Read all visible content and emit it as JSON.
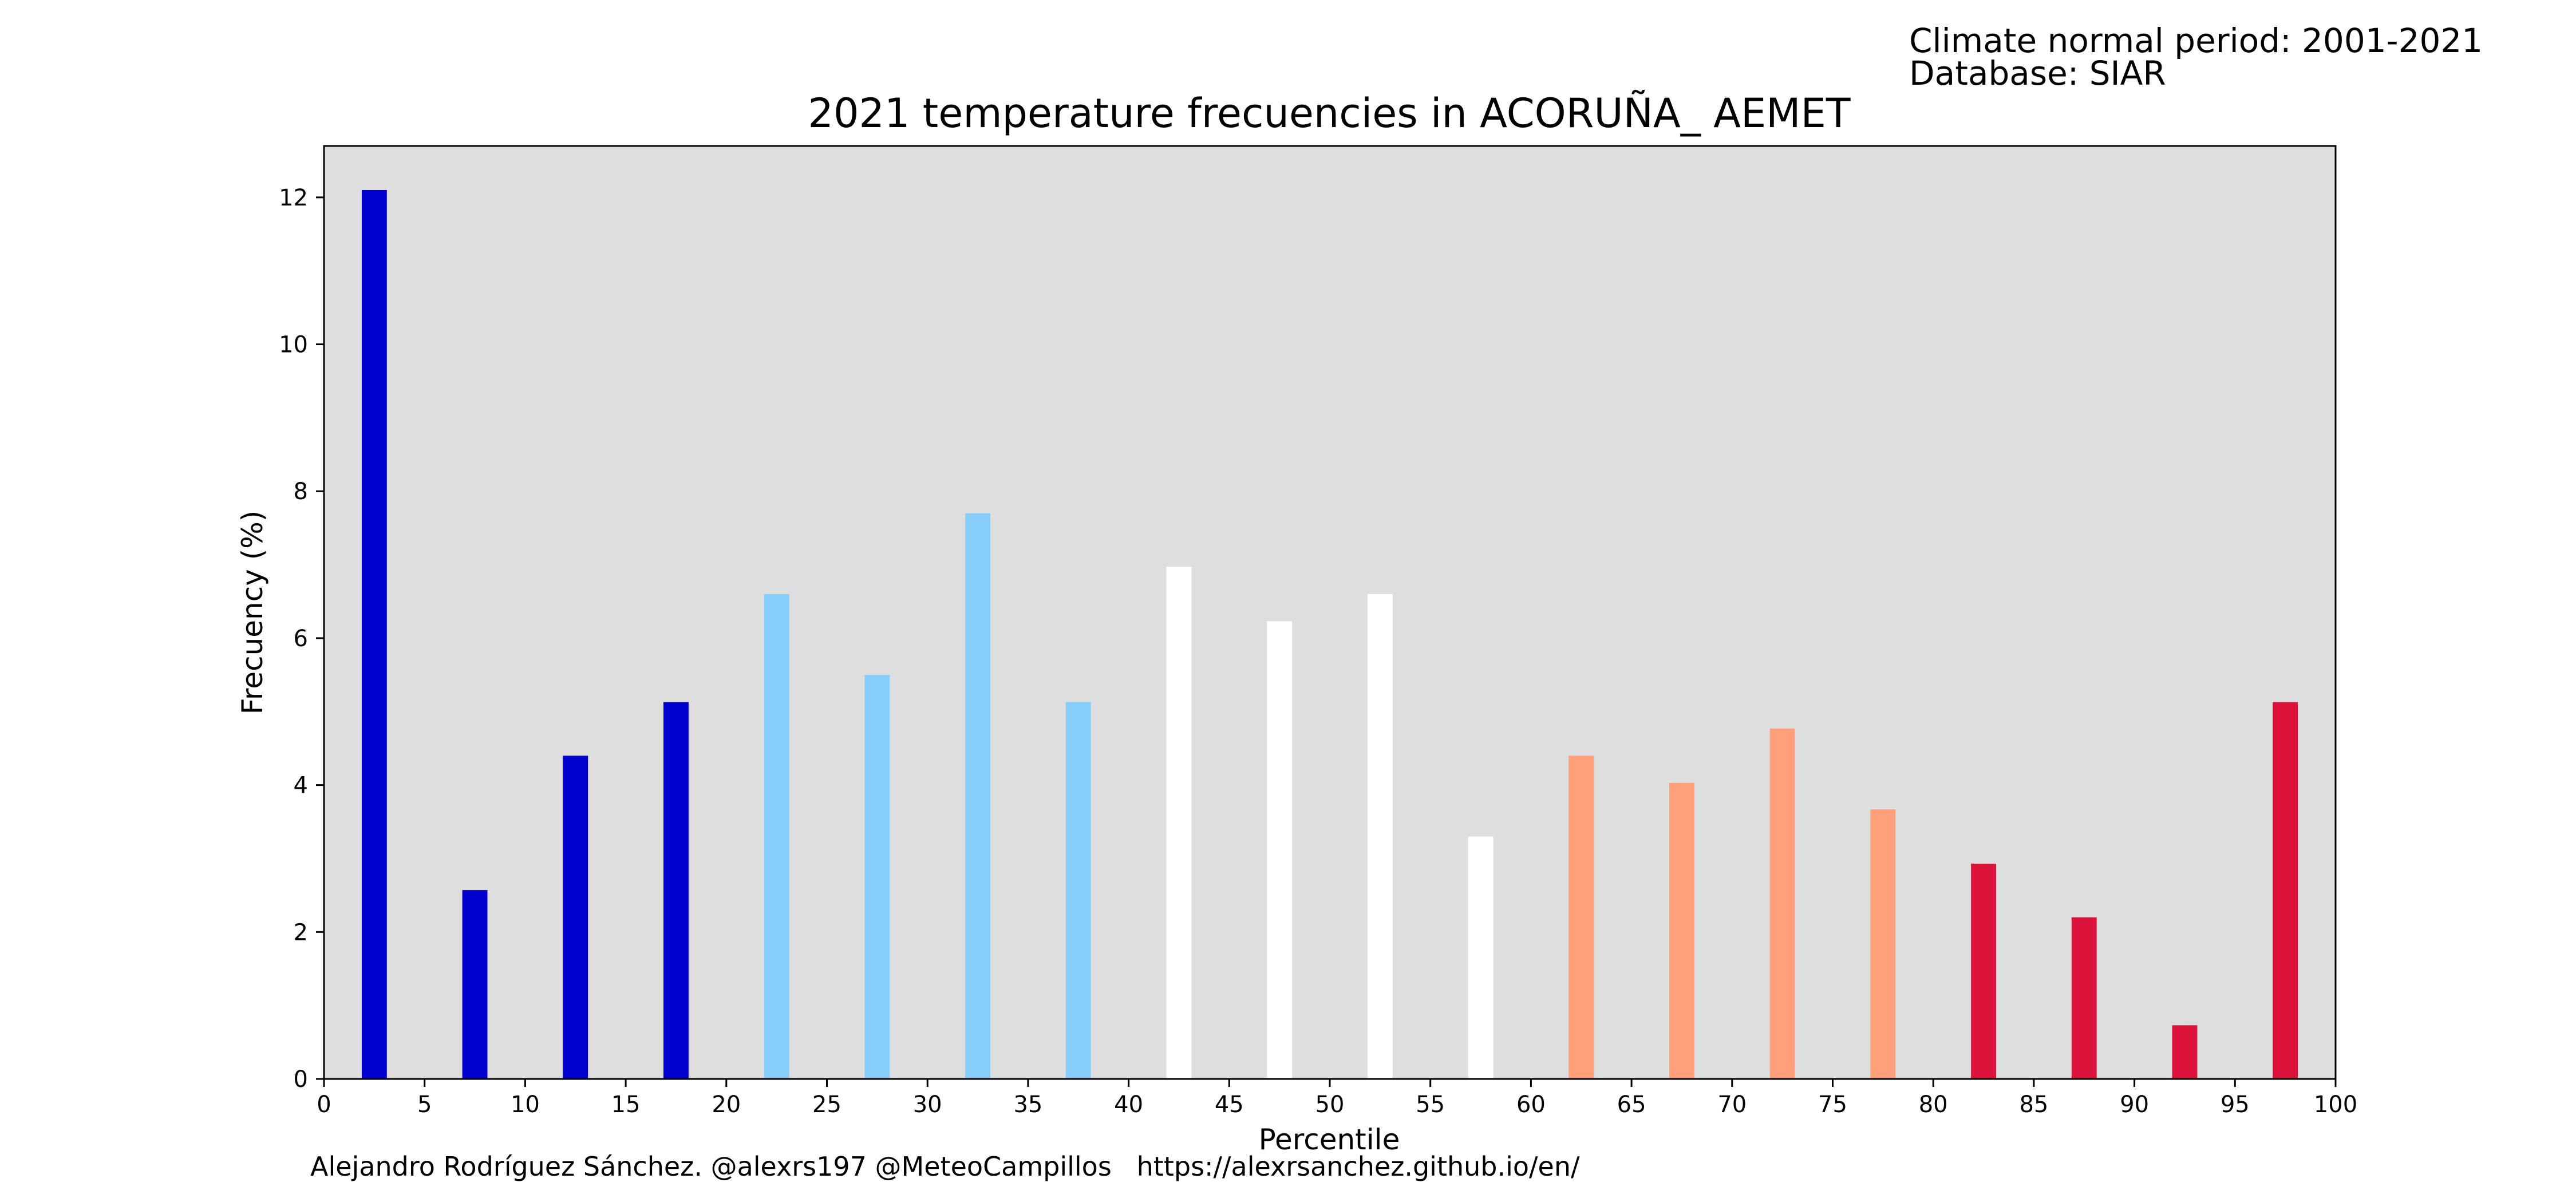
{
  "header": {
    "line1": "Climate normal period: 2001-2021",
    "line2": "Database: SIAR"
  },
  "footer": {
    "credit": "Alejandro Rodríguez Sánchez. @alexrs197 @MeteoCampillos   https://alexrsanchez.github.io/en/"
  },
  "chart_data": {
    "type": "bar",
    "title": "2021 temperature frecuencies in ACORUÑA_ AEMET",
    "xlabel": "Percentile",
    "ylabel": "Frecuency (%)",
    "xlim": [
      0,
      100
    ],
    "ylim": [
      0,
      12.7
    ],
    "xticks": [
      0,
      5,
      10,
      15,
      20,
      25,
      30,
      35,
      40,
      45,
      50,
      55,
      60,
      65,
      70,
      75,
      80,
      85,
      90,
      95,
      100
    ],
    "yticks": [
      0,
      2,
      4,
      6,
      8,
      10,
      12
    ],
    "grid": false,
    "background": "#dedede",
    "bar_width": 1.25,
    "x": [
      2.5,
      7.5,
      12.5,
      17.5,
      22.5,
      27.5,
      32.5,
      37.5,
      42.5,
      47.5,
      52.5,
      57.5,
      62.5,
      67.5,
      72.5,
      77.5,
      82.5,
      87.5,
      92.5,
      97.5
    ],
    "values": [
      12.1,
      2.57,
      4.4,
      5.13,
      6.6,
      5.5,
      7.7,
      5.13,
      6.97,
      6.23,
      6.6,
      3.3,
      4.4,
      4.03,
      4.77,
      3.67,
      2.93,
      2.2,
      0.73,
      5.13
    ],
    "colors": [
      "#0000cd",
      "#0000cd",
      "#0000cd",
      "#0000cd",
      "#87cefa",
      "#87cefa",
      "#87cefa",
      "#87cefa",
      "#ffffff",
      "#ffffff",
      "#ffffff",
      "#ffffff",
      "#ffa07a",
      "#ffa07a",
      "#ffa07a",
      "#ffa07a",
      "#dc143c",
      "#dc143c",
      "#dc143c",
      "#dc143c"
    ]
  }
}
